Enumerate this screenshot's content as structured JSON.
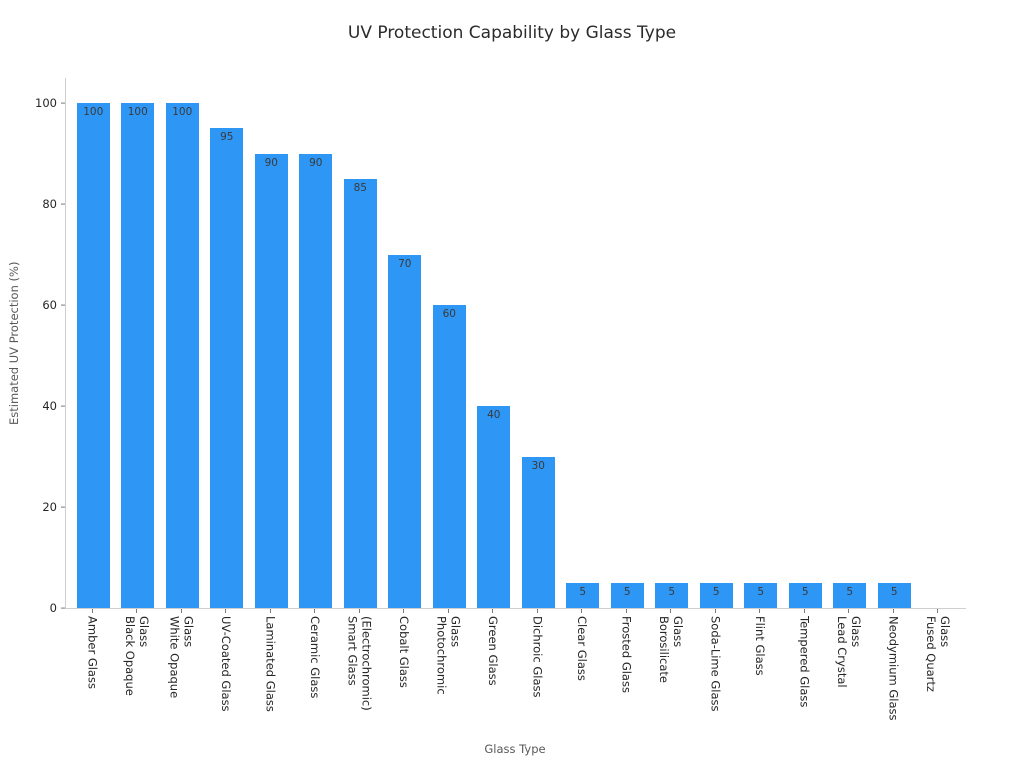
{
  "chart_data": {
    "type": "bar",
    "title": "UV Protection Capability by Glass Type",
    "xlabel": "Glass Type",
    "ylabel": "Estimated UV Protection (%)",
    "ylim": [
      0,
      105
    ],
    "yticks": [
      0,
      20,
      40,
      60,
      80,
      100
    ],
    "grid": false,
    "legend": false,
    "bar_color": "#2E96F5",
    "value_label_color": "#3a3a3a",
    "categories": [
      "Amber Glass",
      "Black Opaque Glass",
      "White Opaque Glass",
      "UV-Coated Glass",
      "Laminated Glass",
      "Ceramic Glass",
      "Smart Glass (Electrochromic)",
      "Cobalt Glass",
      "Photochromic Glass",
      "Green Glass",
      "Dichroic Glass",
      "Clear Glass",
      "Frosted Glass",
      "Borosilicate Glass",
      "Soda-Lime Glass",
      "Flint Glass",
      "Tempered Glass",
      "Lead Crystal Glass",
      "Neodymium Glass",
      "Fused Quartz Glass"
    ],
    "category_label_lines": [
      [
        "Amber Glass"
      ],
      [
        "Black Opaque",
        "Glass"
      ],
      [
        "White Opaque",
        "Glass"
      ],
      [
        "UV-Coated Glass"
      ],
      [
        "Laminated Glass"
      ],
      [
        "Ceramic Glass"
      ],
      [
        "Smart Glass",
        "(Electrochromic)"
      ],
      [
        "Cobalt Glass"
      ],
      [
        "Photochromic",
        "Glass"
      ],
      [
        "Green Glass"
      ],
      [
        "Dichroic Glass"
      ],
      [
        "Clear Glass"
      ],
      [
        "Frosted Glass"
      ],
      [
        "Borosilicate",
        "Glass"
      ],
      [
        "Soda-Lime Glass"
      ],
      [
        "Flint Glass"
      ],
      [
        "Tempered Glass"
      ],
      [
        "Lead Crystal",
        "Glass"
      ],
      [
        "Neodymium Glass"
      ],
      [
        "Fused Quartz",
        "Glass"
      ]
    ],
    "values": [
      100,
      100,
      100,
      95,
      90,
      90,
      85,
      70,
      60,
      40,
      30,
      5,
      5,
      5,
      5,
      5,
      5,
      5,
      5,
      0
    ]
  }
}
